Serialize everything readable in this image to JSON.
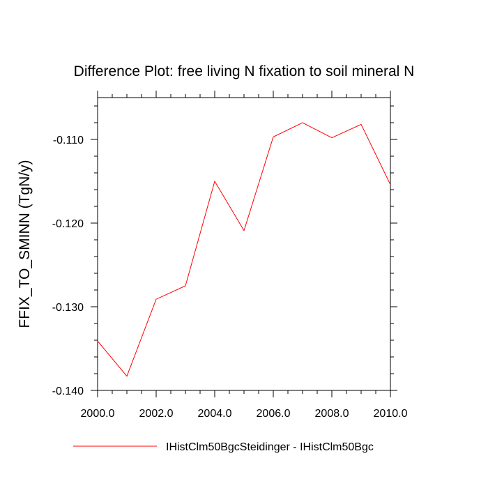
{
  "chart_data": {
    "type": "line",
    "title": "Difference Plot: free living N fixation to soil mineral N",
    "xlabel": "",
    "ylabel": "FFIX_TO_SMINN  (TgN/y)",
    "xlim": [
      2000,
      2010
    ],
    "ylim": [
      -0.14,
      -0.105
    ],
    "x_ticks": [
      2000,
      2002,
      2004,
      2006,
      2008,
      2010
    ],
    "x_tick_labels": [
      "2000.0",
      "2002.0",
      "2004.0",
      "2006.0",
      "2008.0",
      "2010.0"
    ],
    "y_ticks": [
      -0.14,
      -0.13,
      -0.12,
      -0.11
    ],
    "y_tick_labels": [
      "-0.140",
      "-0.130",
      "-0.120",
      "-0.110"
    ],
    "grid": false,
    "legend_position": "bottom",
    "series": [
      {
        "name": "IHistClm50BgcSteidinger - IHistClm50Bgc",
        "color": "#ff0000",
        "x": [
          2000,
          2001,
          2002,
          2003,
          2004,
          2005,
          2006,
          2007,
          2008,
          2009,
          2010
        ],
        "y": [
          -0.1341,
          -0.1383,
          -0.1291,
          -0.1275,
          -0.115,
          -0.1209,
          -0.1097,
          -0.108,
          -0.1098,
          -0.1082,
          -0.1154
        ]
      }
    ]
  }
}
